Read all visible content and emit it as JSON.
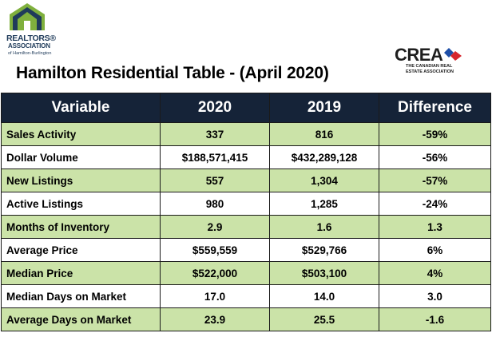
{
  "logo": {
    "line1": "REALTORS®",
    "line2": "ASSOCIATION",
    "line3": "of Hamilton-Burlington"
  },
  "title": "Hamilton Residential Table - (April 2020)",
  "crea": {
    "word": "CREA",
    "sub1": "THE CANADIAN REAL",
    "sub2": "ESTATE ASSOCIATION"
  },
  "table": {
    "headers": [
      "Variable",
      "2020",
      "2019",
      "Difference"
    ],
    "rows": [
      [
        "Sales Activity",
        "337",
        "816",
        "-59%"
      ],
      [
        "Dollar Volume",
        "$188,571,415",
        "$432,289,128",
        "-56%"
      ],
      [
        "New Listings",
        "557",
        "1,304",
        "-57%"
      ],
      [
        "Active Listings",
        "980",
        "1,285",
        "-24%"
      ],
      [
        "Months of Inventory",
        "2.9",
        "1.6",
        "1.3"
      ],
      [
        "Average Price",
        "$559,559",
        "$529,766",
        "6%"
      ],
      [
        "Median Price",
        "$522,000",
        "$503,100",
        "4%"
      ],
      [
        "Median Days on Market",
        "17.0",
        "14.0",
        "3.0"
      ],
      [
        "Average Days on Market",
        "23.9",
        "25.5",
        "-1.6"
      ]
    ]
  },
  "colors": {
    "header_bg": "#152338",
    "green_row": "#cbe3a8",
    "logo_green": "#7fb03d",
    "crea_blue": "#1f4fa8",
    "crea_red": "#d6262e"
  }
}
